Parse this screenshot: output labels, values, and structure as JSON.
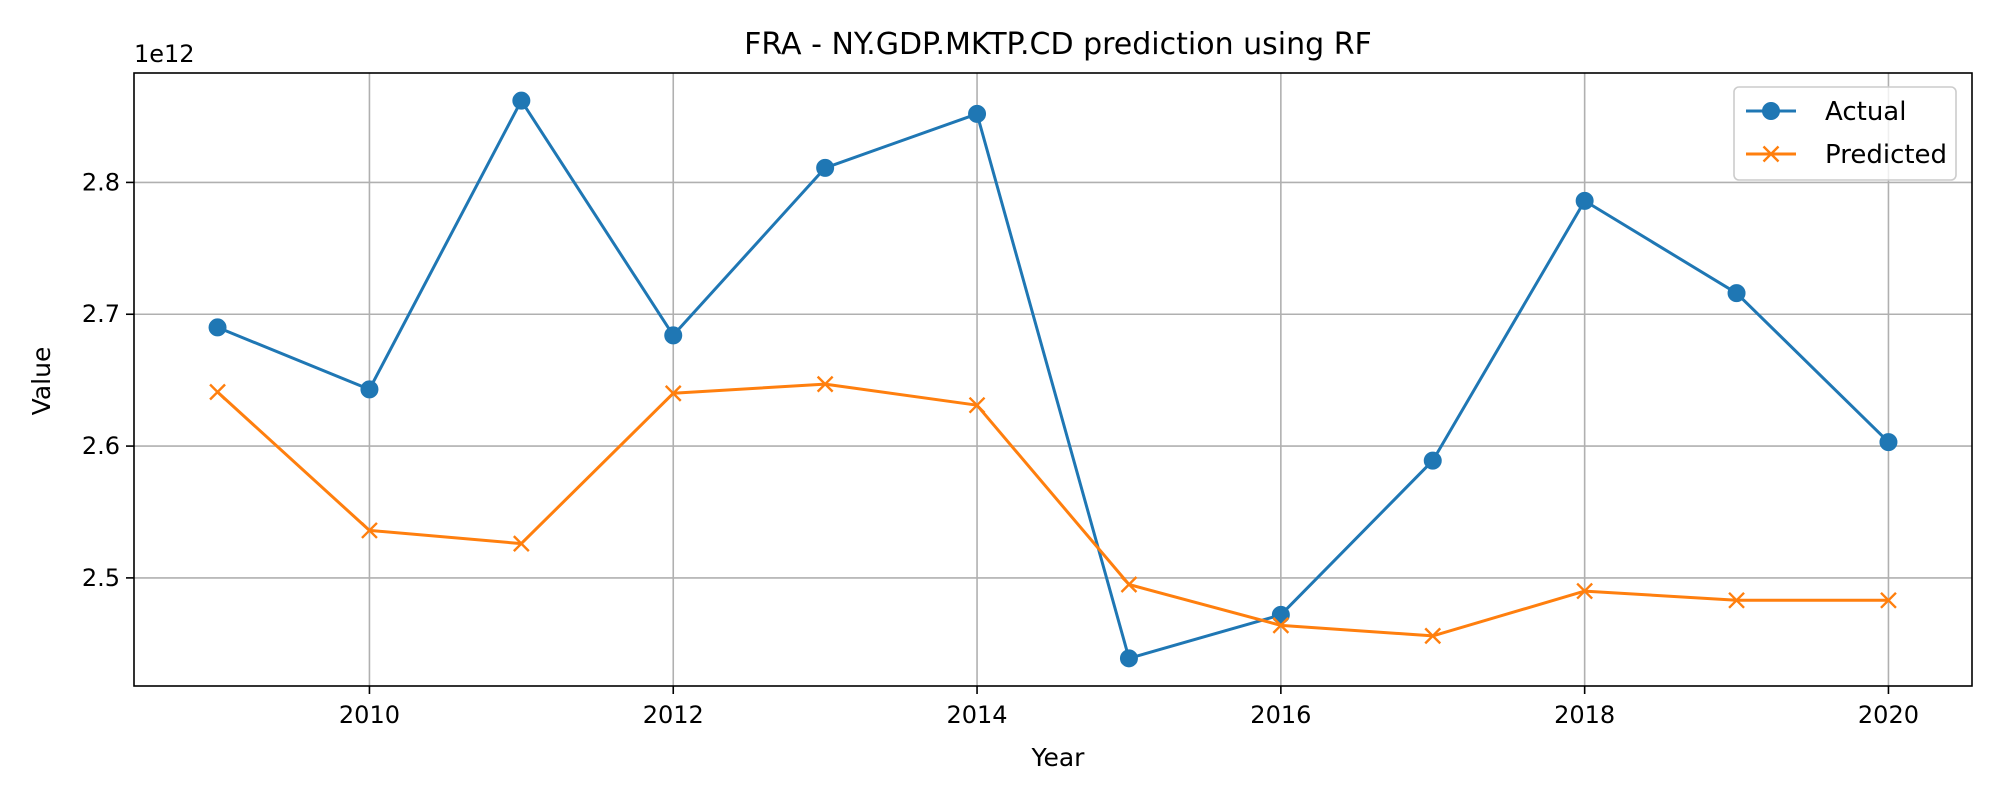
{
  "chart_data": {
    "type": "line",
    "title": "FRA - NY.GDP.MKTP.CD prediction using RF",
    "xlabel": "Year",
    "ylabel": "Value",
    "y_offset_label": "1e12",
    "x": [
      2009,
      2010,
      2011,
      2012,
      2013,
      2014,
      2015,
      2016,
      2017,
      2018,
      2019,
      2020
    ],
    "series": [
      {
        "name": "Actual",
        "color": "#1f77b4",
        "marker": "circle",
        "values": [
          2.69,
          2.643,
          2.862,
          2.684,
          2.811,
          2.852,
          2.439,
          2.472,
          2.589,
          2.786,
          2.716,
          2.603
        ]
      },
      {
        "name": "Predicted",
        "color": "#ff7f0e",
        "marker": "x",
        "values": [
          2.641,
          2.536,
          2.526,
          2.64,
          2.647,
          2.631,
          2.495,
          2.464,
          2.456,
          2.49,
          2.483,
          2.483
        ]
      }
    ],
    "xlim": [
      2008.45,
      2020.55
    ],
    "ylim": [
      2.418,
      2.883
    ],
    "xticks": [
      2010,
      2012,
      2014,
      2016,
      2018,
      2020
    ],
    "yticks": [
      2.5,
      2.6,
      2.7,
      2.8
    ],
    "ytick_labels": [
      "2.5",
      "2.6",
      "2.7",
      "2.8"
    ],
    "grid": true,
    "legend_position": "top-right"
  }
}
